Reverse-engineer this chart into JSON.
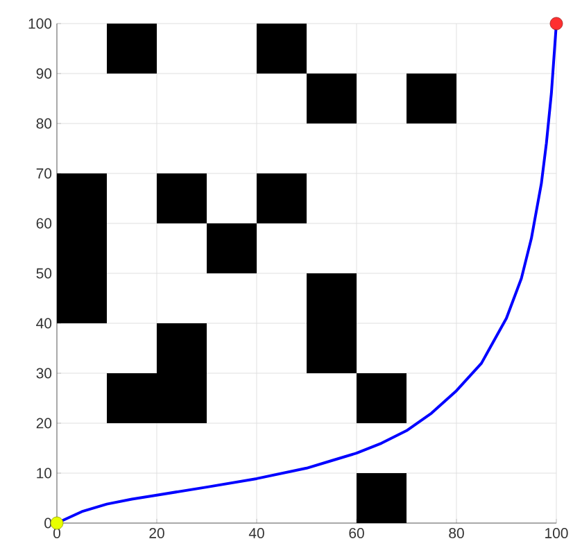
{
  "chart_data": {
    "type": "line",
    "xlim": [
      0,
      100
    ],
    "ylim": [
      0,
      100
    ],
    "xticks": [
      0,
      20,
      40,
      60,
      80,
      100
    ],
    "yticks": [
      0,
      10,
      20,
      30,
      40,
      50,
      60,
      70,
      80,
      90,
      100
    ],
    "grid": true,
    "series": [
      {
        "type": "bar",
        "color": "#000000",
        "x": [
          5,
          15,
          25,
          35,
          45,
          55,
          65,
          75
        ],
        "base": [
          40,
          90,
          60,
          50,
          90,
          80,
          20,
          80
        ],
        "values": [
          30,
          10,
          10,
          10,
          10,
          10,
          10,
          10
        ]
      },
      {
        "type": "bar",
        "color": "#000000",
        "x": [
          15,
          25,
          45,
          55,
          65
        ],
        "base": [
          20,
          20,
          60,
          30,
          0
        ],
        "values": [
          10,
          20,
          10,
          20,
          10
        ]
      },
      {
        "color": "#0000ff",
        "line_style": "solid",
        "marker": "none",
        "x": [
          0,
          5,
          10,
          15,
          20,
          30,
          40,
          50,
          55,
          60,
          65,
          70,
          75,
          80,
          85,
          90,
          93,
          95,
          97,
          98,
          99,
          100
        ],
        "values": [
          0,
          2.3,
          3.8,
          4.8,
          5.6,
          7.2,
          8.9,
          11,
          12.5,
          14,
          16,
          18.5,
          22,
          26.5,
          32,
          41,
          49,
          57,
          68,
          76,
          86,
          100
        ]
      },
      {
        "type": "scatter",
        "color": "#e8ff00",
        "marker": "circle",
        "x": [
          0
        ],
        "values": [
          0
        ]
      },
      {
        "type": "scatter",
        "color": "#ff3030",
        "marker": "circle",
        "x": [
          100
        ],
        "values": [
          100
        ]
      }
    ]
  }
}
